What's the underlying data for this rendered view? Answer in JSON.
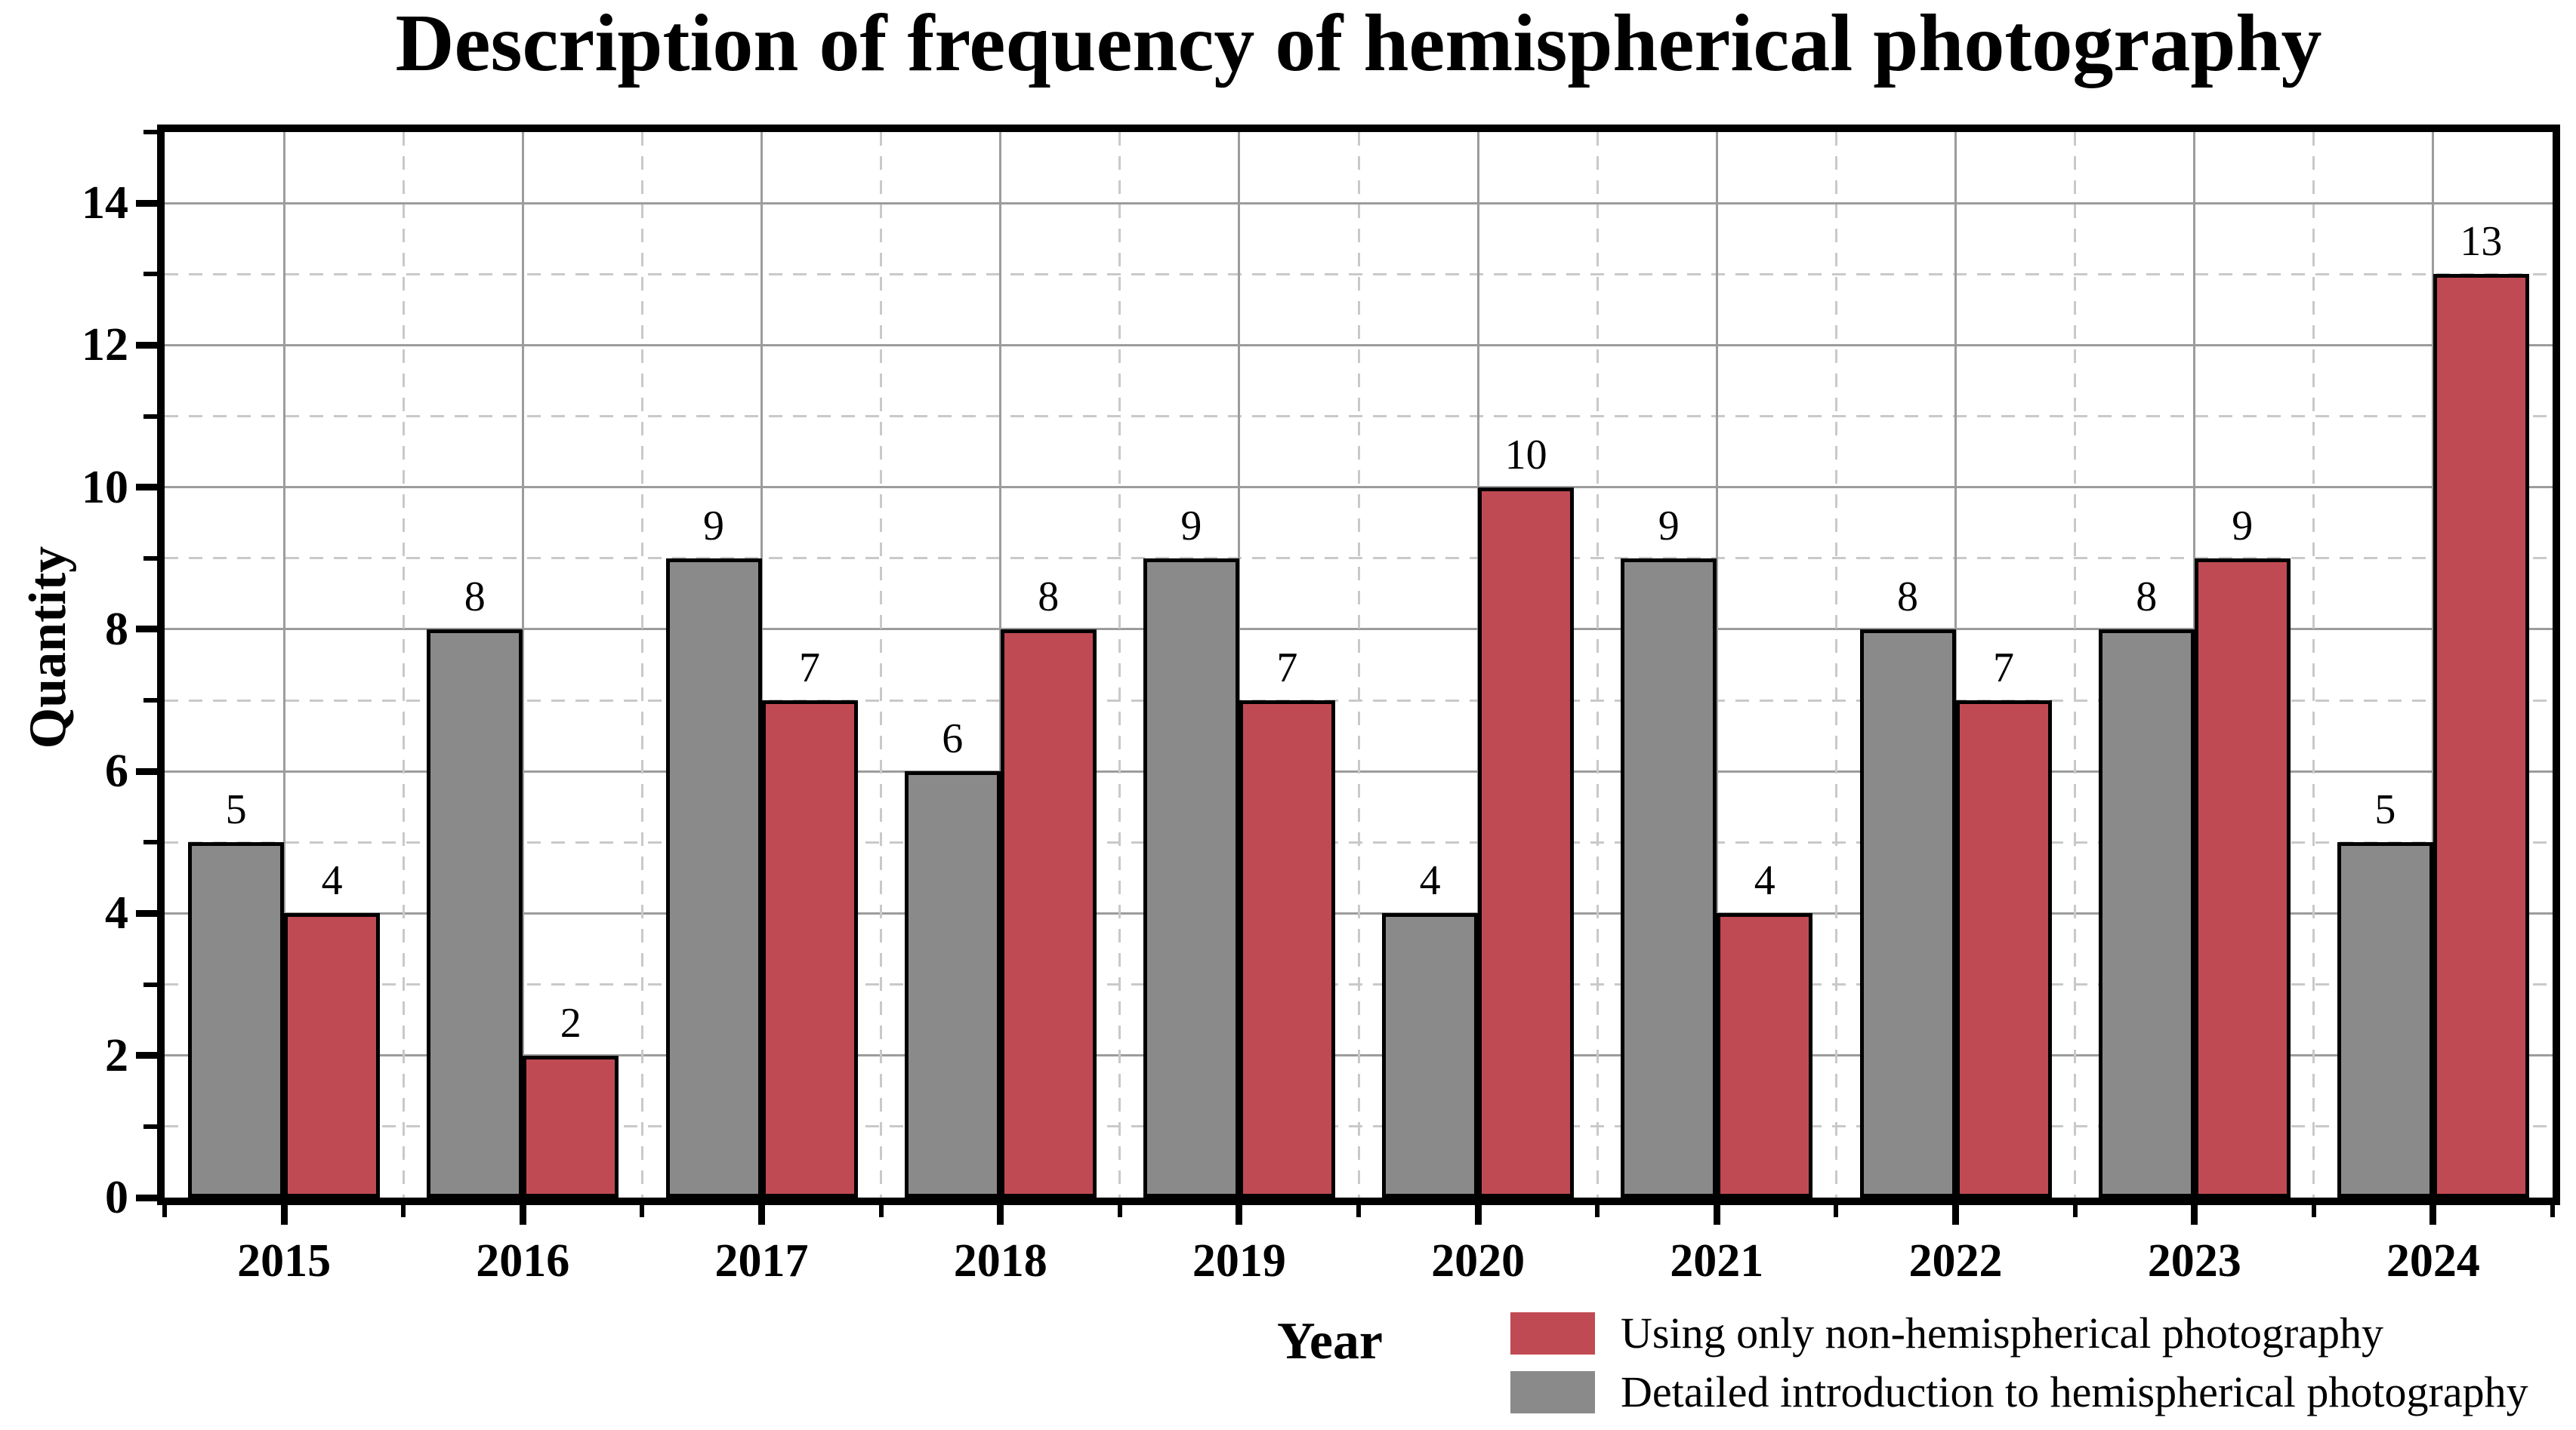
{
  "title": "Description of frequency of hemispherical photography",
  "x_axis": {
    "label": "Year",
    "tick_labels": [
      "2015",
      "2016",
      "2017",
      "2018",
      "2019",
      "2020",
      "2021",
      "2022",
      "2023",
      "2024"
    ]
  },
  "y_axis": {
    "label": "Quantity",
    "tick_labels": [
      "0",
      "2",
      "4",
      "6",
      "8",
      "10",
      "12",
      "14"
    ],
    "min": 0,
    "max": 15,
    "major_step": 2,
    "minor_step": 1
  },
  "legend": {
    "items": [
      {
        "label": "Using only non-hemispherical photography",
        "color": "#C04A53"
      },
      {
        "label": "Detailed introduction to hemispherical photography",
        "color": "#8A8A8A"
      }
    ]
  },
  "colors": {
    "background": "#FFFFFF",
    "text": "#000000",
    "frame": "#000000",
    "bar_outline": "#000000",
    "grid_major": "#9C9C9C",
    "grid_minor": "#C9C9C9"
  },
  "chart_data": {
    "type": "bar",
    "categories": [
      "2015",
      "2016",
      "2017",
      "2018",
      "2019",
      "2020",
      "2021",
      "2022",
      "2023",
      "2024"
    ],
    "series": [
      {
        "key": "detailed-introduction",
        "name": "Detailed introduction to hemispherical photography",
        "color": "#8A8A8A",
        "position_in_group": "left",
        "values": [
          5,
          8,
          9,
          6,
          9,
          4,
          9,
          8,
          8,
          5
        ]
      },
      {
        "key": "non-hemispherical",
        "name": "Using only non-hemispherical photography",
        "color": "#C04A53",
        "position_in_group": "right",
        "values": [
          4,
          2,
          7,
          8,
          7,
          10,
          4,
          7,
          9,
          13
        ]
      }
    ],
    "title": "Description of frequency of hemispherical photography",
    "xlabel": "Year",
    "ylabel": "Quantity",
    "ylim": [
      0,
      15
    ],
    "y_major_ticks": [
      0,
      2,
      4,
      6,
      8,
      10,
      12,
      14
    ],
    "grid": {
      "major": "solid",
      "minor": "dashed",
      "minor_x": "between-year-groups",
      "major_x": "at-year-centers"
    },
    "legend_position": "outside-bottom-right",
    "value_labels": "above-bars"
  }
}
